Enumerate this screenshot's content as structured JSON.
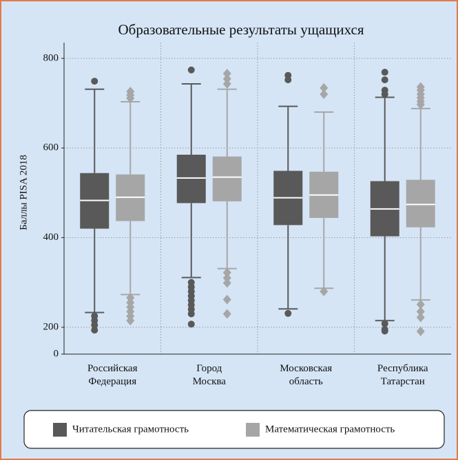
{
  "chart_data": {
    "type": "box",
    "title": "Образовательные результаты ущащихся",
    "y_label": "Баллы PISA 2018",
    "categories": [
      "Российская Федерация",
      "Город Москва",
      "Московская область",
      "Республика Татарстан"
    ],
    "ylim": [
      0,
      835
    ],
    "yticks": [
      0,
      200,
      400,
      600,
      800
    ],
    "grid": true,
    "legend": "bottom",
    "series": [
      {
        "name": "Читательская грамотность",
        "color": "#595959",
        "marker": "circle",
        "whisker_low": [
          233,
          311,
          241,
          215
        ],
        "q1": [
          420,
          477,
          428,
          403
        ],
        "median": [
          483,
          533,
          489,
          464
        ],
        "q3": [
          544,
          585,
          549,
          526
        ],
        "whisker_high": [
          731,
          743,
          693,
          713
        ],
        "outliers": [
          [
            749,
            225,
            215,
            205,
            179
          ],
          [
            774,
            300,
            290,
            280,
            270,
            260,
            250,
            240,
            230,
            207
          ],
          [
            762,
            752,
            231
          ],
          [
            769,
            752,
            729,
            720,
            208,
            184,
            172
          ]
        ]
      },
      {
        "name": "Математическая грамотность",
        "color": "#a6a6a6",
        "marker": "diamond",
        "whisker_low": [
          273,
          331,
          287,
          261
        ],
        "q1": [
          437,
          481,
          444,
          423
        ],
        "median": [
          490,
          535,
          495,
          474
        ],
        "q3": [
          541,
          581,
          547,
          529
        ],
        "whisker_high": [
          703,
          731,
          680,
          688
        ],
        "outliers": [
          [
            726,
            718,
            711,
            266,
            255,
            245,
            235,
            225,
            215
          ],
          [
            766,
            754,
            743,
            322,
            310,
            299,
            262,
            230
          ],
          [
            734,
            720,
            280
          ],
          [
            736,
            729,
            720,
            712,
            704,
            697,
            251,
            235,
            222,
            170
          ]
        ]
      }
    ]
  }
}
